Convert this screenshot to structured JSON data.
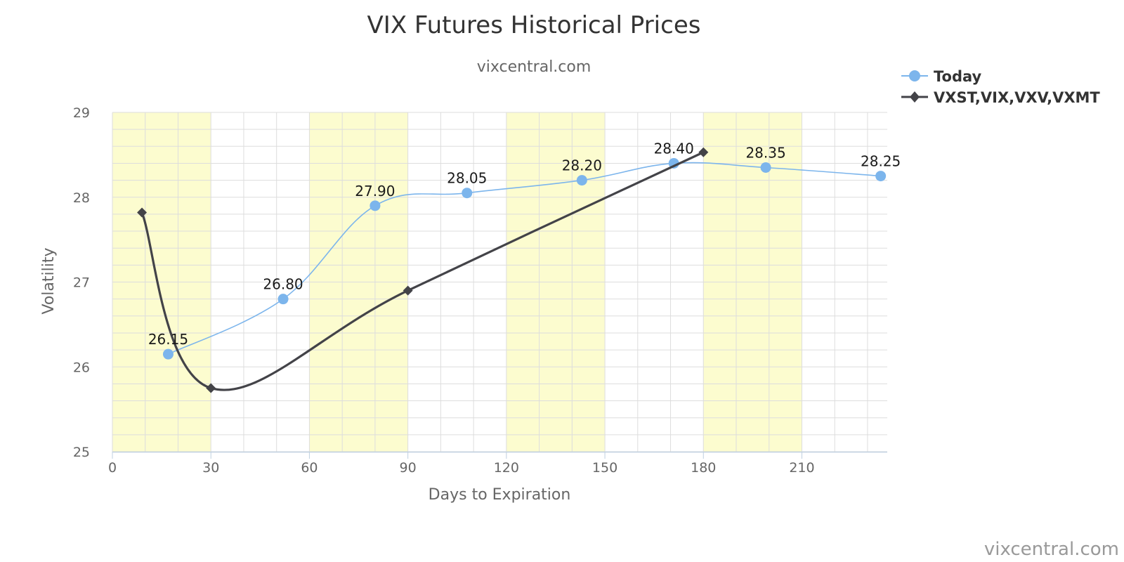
{
  "chart_data": {
    "type": "line",
    "title": "VIX Futures Historical Prices",
    "subtitle": "vixcentral.com",
    "xlabel": "Days to Expiration",
    "ylabel": "Volatility",
    "xlim": [
      0,
      236
    ],
    "ylim": [
      25,
      29
    ],
    "x_ticks": [
      0,
      30,
      60,
      90,
      120,
      150,
      180,
      210
    ],
    "y_ticks": [
      25,
      26,
      27,
      28,
      29
    ],
    "grid": true,
    "shaded_bands": [
      [
        0,
        30
      ],
      [
        60,
        90
      ],
      [
        120,
        150
      ],
      [
        180,
        210
      ]
    ],
    "legend_position": "top-right",
    "series": [
      {
        "name": "Today",
        "color": "#7cb5ec",
        "marker": "circle",
        "x": [
          17,
          52,
          80,
          108,
          143,
          171,
          199,
          234
        ],
        "y": [
          26.15,
          26.8,
          27.9,
          28.05,
          28.2,
          28.4,
          28.35,
          28.25
        ],
        "labels": [
          "26.15",
          "26.80",
          "27.90",
          "28.05",
          "28.20",
          "28.40",
          "28.35",
          "28.25"
        ]
      },
      {
        "name": "VXST,VIX,VXV,VXMT",
        "color": "#434348",
        "marker": "diamond",
        "x": [
          9,
          30,
          90,
          180
        ],
        "y": [
          27.82,
          25.75,
          26.9,
          28.53
        ]
      }
    ],
    "credit": "vixcentral.com"
  }
}
